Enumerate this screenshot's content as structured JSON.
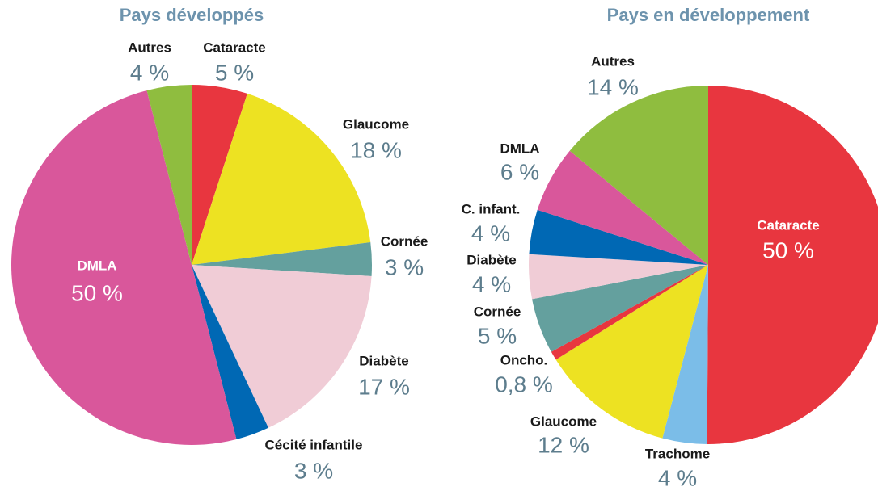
{
  "chart_data": [
    {
      "type": "pie",
      "title": "Pays développés",
      "categories": [
        "Cataracte",
        "Glaucome",
        "Cornée",
        "Diabète",
        "Cécité infantile",
        "DMLA",
        "Autres"
      ],
      "values": [
        5,
        18,
        3,
        17,
        3,
        50,
        4
      ],
      "value_labels": [
        "5 %",
        "18 %",
        "3 %",
        "17 %",
        "3 %",
        "50 %",
        "4 %"
      ],
      "colors": [
        "#e8363f",
        "#ede222",
        "#64a09e",
        "#f0ccd6",
        "#0068b4",
        "#d9579b",
        "#8fbd3f"
      ]
    },
    {
      "type": "pie",
      "title": "Pays en développement",
      "categories": [
        "Cataracte",
        "Trachome",
        "Glaucome",
        "Oncho.",
        "Cornée",
        "Diabète",
        "C. infant.",
        "DMLA",
        "Autres"
      ],
      "values": [
        50,
        4,
        12,
        0.8,
        5,
        4,
        4,
        6,
        14
      ],
      "value_labels": [
        "50 %",
        "4 %",
        "12 %",
        "0,8 %",
        "5 %",
        "4 %",
        "4 %",
        "6 %",
        "14 %"
      ],
      "colors": [
        "#e8363f",
        "#7bbde8",
        "#ede222",
        "#e8363f",
        "#64a09e",
        "#f0ccd6",
        "#0068b4",
        "#d9579b",
        "#8fbd3f"
      ]
    }
  ]
}
